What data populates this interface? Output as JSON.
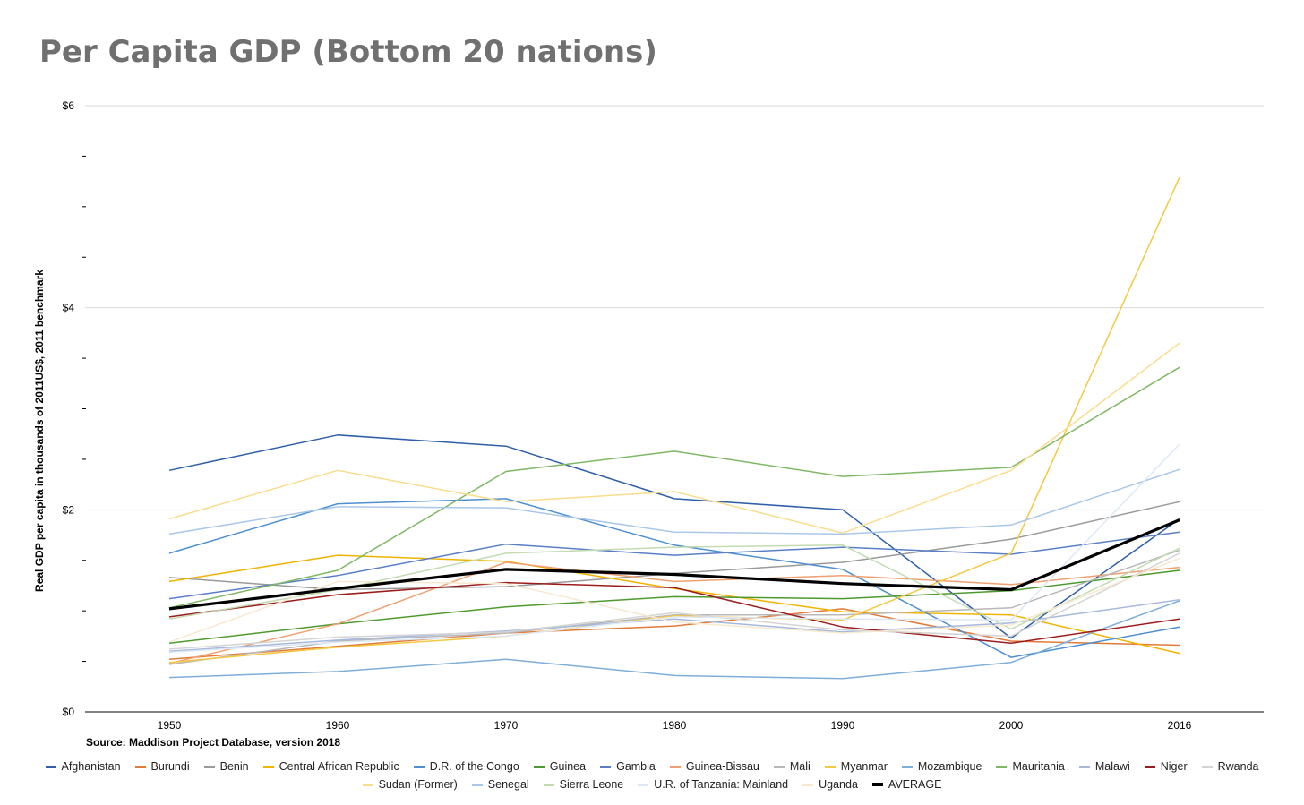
{
  "chart_data": {
    "type": "line",
    "title": "Per Capita GDP (Bottom 20 nations)",
    "ylabel": "Real GDP per capita in thousands of 2011US$, 2011 benchmark",
    "source": "Source: Maddison Project Database, version 2018",
    "x": [
      "1950",
      "1960",
      "1970",
      "1980",
      "1990",
      "2000",
      "2016"
    ],
    "ylim": [
      0,
      6
    ],
    "yticks": [
      {
        "value": 0,
        "label": "$0"
      },
      {
        "value": 2,
        "label": "$2"
      },
      {
        "value": 4,
        "label": "$4"
      },
      {
        "value": 6,
        "label": "$6"
      }
    ],
    "grid": true,
    "legend_position": "bottom",
    "series": [
      {
        "name": "Afghanistan",
        "color": "#2f5fa8",
        "values": [
          2.39,
          2.74,
          2.63,
          2.11,
          2.0,
          0.73,
          1.91
        ]
      },
      {
        "name": "Burundi",
        "color": "#e07b39",
        "values": [
          0.52,
          0.65,
          0.78,
          0.85,
          1.02,
          0.7,
          0.66
        ]
      },
      {
        "name": "Benin",
        "color": "#9a9a9a",
        "values": [
          1.33,
          1.21,
          1.24,
          1.37,
          1.48,
          1.71,
          2.08
        ]
      },
      {
        "name": "Central African Republic",
        "color": "#f0b400",
        "values": [
          1.29,
          1.55,
          1.49,
          1.22,
          0.99,
          0.96,
          0.58
        ]
      },
      {
        "name": "D.R. of the Congo",
        "color": "#4d8fd1",
        "values": [
          1.57,
          2.06,
          2.11,
          1.65,
          1.41,
          0.54,
          0.84
        ]
      },
      {
        "name": "Guinea",
        "color": "#4e9a2f",
        "values": [
          0.68,
          0.87,
          1.04,
          1.14,
          1.12,
          1.2,
          1.4
        ]
      },
      {
        "name": "Gambia",
        "color": "#5a7fc7",
        "values": [
          1.12,
          1.35,
          1.66,
          1.55,
          1.63,
          1.56,
          1.78
        ]
      },
      {
        "name": "Guinea-Bissau",
        "color": "#f0a070",
        "values": [
          0.48,
          0.87,
          1.48,
          1.29,
          1.35,
          1.26,
          1.43
        ]
      },
      {
        "name": "Mali",
        "color": "#b8b8b8",
        "values": [
          0.47,
          0.7,
          0.78,
          0.96,
          0.96,
          1.03,
          1.6
        ]
      },
      {
        "name": "Myanmar",
        "color": "#f5c842",
        "values": [
          0.49,
          0.64,
          0.75,
          0.95,
          0.91,
          1.57,
          5.29
        ]
      },
      {
        "name": "Mozambique",
        "color": "#7faed9",
        "values": [
          0.34,
          0.4,
          0.52,
          0.36,
          0.33,
          0.49,
          1.1
        ]
      },
      {
        "name": "Mauritania",
        "color": "#7fb865",
        "values": [
          1.03,
          1.4,
          2.38,
          2.58,
          2.33,
          2.42,
          3.41
        ]
      },
      {
        "name": "Malawi",
        "color": "#a6b8dc",
        "values": [
          0.6,
          0.71,
          0.8,
          0.92,
          0.79,
          0.88,
          1.11
        ]
      },
      {
        "name": "Niger",
        "color": "#9c1c1c",
        "values": [
          0.94,
          1.16,
          1.28,
          1.23,
          0.84,
          0.68,
          0.92
        ]
      },
      {
        "name": "Rwanda",
        "color": "#d4d4d4",
        "values": [
          0.62,
          0.74,
          0.79,
          0.98,
          0.81,
          0.75,
          1.57
        ]
      },
      {
        "name": "Sudan (Former)",
        "color": "#f9dc8c",
        "values": [
          1.91,
          2.39,
          2.08,
          2.18,
          1.77,
          2.39,
          3.65
        ]
      },
      {
        "name": "Senegal",
        "color": "#a9c7e8",
        "values": [
          1.76,
          2.03,
          2.02,
          1.78,
          1.76,
          1.85,
          2.4
        ]
      },
      {
        "name": "Sierra Leone",
        "color": "#c2dbb0",
        "values": [
          0.92,
          1.21,
          1.57,
          1.63,
          1.65,
          0.82,
          1.62
        ]
      },
      {
        "name": "U.R. of Tanzania: Mainland",
        "color": "#dde8f4",
        "values": [
          0.59,
          0.69,
          0.75,
          0.94,
          0.92,
          0.91,
          2.65
        ]
      },
      {
        "name": "Uganda",
        "color": "#f7e8d0",
        "values": [
          0.69,
          1.29,
          1.27,
          0.89,
          0.78,
          0.86,
          1.52
        ]
      },
      {
        "name": "AVERAGE",
        "color": "#000000",
        "bold": true,
        "values": [
          1.02,
          1.22,
          1.41,
          1.36,
          1.27,
          1.21,
          1.9
        ]
      }
    ]
  }
}
